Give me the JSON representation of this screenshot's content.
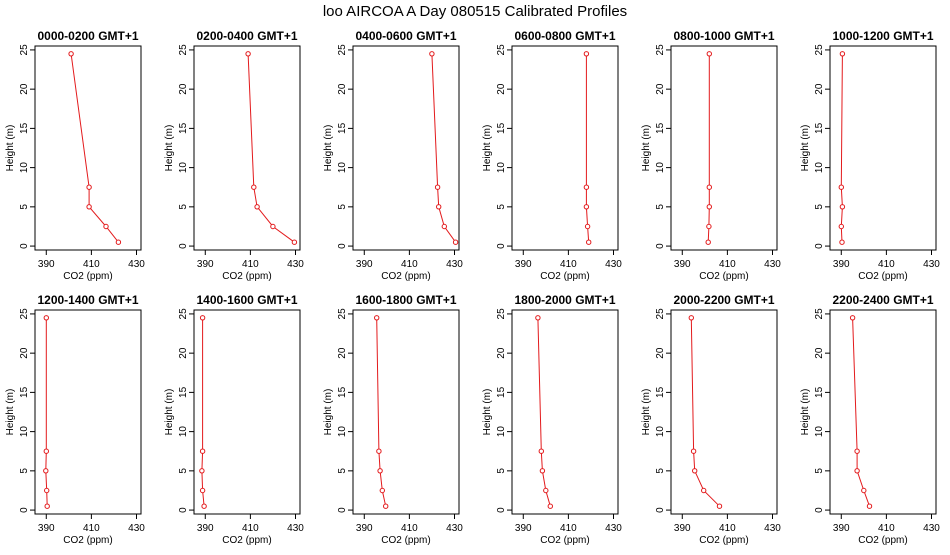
{
  "figure": {
    "title": "loo AIRCOA A  Day 080515  Calibrated Profiles",
    "series_color": "#e31a1c"
  },
  "chart_data": [
    {
      "type": "line",
      "title": "0000-0200 GMT+1",
      "xlabel": "CO2 (ppm)",
      "ylabel": "Height (m)",
      "xlim": [
        385,
        432
      ],
      "ylim": [
        -0.5,
        25.5
      ],
      "xticks": [
        390,
        410,
        430
      ],
      "yticks": [
        0,
        5,
        10,
        15,
        20,
        25
      ],
      "grid": false,
      "series": [
        {
          "x": [
            401,
            409,
            409,
            416.5,
            422
          ],
          "y": [
            24.5,
            7.5,
            5,
            2.5,
            0.5
          ]
        }
      ]
    },
    {
      "type": "line",
      "title": "0200-0400 GMT+1",
      "xlabel": "CO2 (ppm)",
      "ylabel": "Height (m)",
      "xlim": [
        385,
        432
      ],
      "ylim": [
        -0.5,
        25.5
      ],
      "xticks": [
        390,
        410,
        430
      ],
      "yticks": [
        0,
        5,
        10,
        15,
        20,
        25
      ],
      "grid": false,
      "series": [
        {
          "x": [
            409,
            411.5,
            413,
            420,
            429.5
          ],
          "y": [
            24.5,
            7.5,
            5,
            2.5,
            0.5
          ]
        }
      ]
    },
    {
      "type": "line",
      "title": "0400-0600 GMT+1",
      "xlabel": "CO2 (ppm)",
      "ylabel": "Height (m)",
      "xlim": [
        385,
        432
      ],
      "ylim": [
        -0.5,
        25.5
      ],
      "xticks": [
        390,
        410,
        430
      ],
      "yticks": [
        0,
        5,
        10,
        15,
        20,
        25
      ],
      "grid": false,
      "series": [
        {
          "x": [
            420,
            422.5,
            423,
            425.5,
            430.5
          ],
          "y": [
            24.5,
            7.5,
            5,
            2.5,
            0.5
          ]
        }
      ]
    },
    {
      "type": "line",
      "title": "0600-0800 GMT+1",
      "xlabel": "CO2 (ppm)",
      "ylabel": "Height (m)",
      "xlim": [
        385,
        432
      ],
      "ylim": [
        -0.5,
        25.5
      ],
      "xticks": [
        390,
        410,
        430
      ],
      "yticks": [
        0,
        5,
        10,
        15,
        20,
        25
      ],
      "grid": false,
      "series": [
        {
          "x": [
            418,
            418,
            418,
            418.5,
            419
          ],
          "y": [
            24.5,
            7.5,
            5,
            2.5,
            0.5
          ]
        }
      ]
    },
    {
      "type": "line",
      "title": "0800-1000 GMT+1",
      "xlabel": "CO2 (ppm)",
      "ylabel": "Height (m)",
      "xlim": [
        385,
        432
      ],
      "ylim": [
        -0.5,
        25.5
      ],
      "xticks": [
        390,
        410,
        430
      ],
      "yticks": [
        0,
        5,
        10,
        15,
        20,
        25
      ],
      "grid": false,
      "series": [
        {
          "x": [
            402,
            402,
            402,
            401.8,
            401.5
          ],
          "y": [
            24.5,
            7.5,
            5,
            2.5,
            0.5
          ]
        }
      ]
    },
    {
      "type": "line",
      "title": "1000-1200 GMT+1",
      "xlabel": "CO2 (ppm)",
      "ylabel": "Height (m)",
      "xlim": [
        385,
        432
      ],
      "ylim": [
        -0.5,
        25.5
      ],
      "xticks": [
        390,
        410,
        430
      ],
      "yticks": [
        0,
        5,
        10,
        15,
        20,
        25
      ],
      "grid": false,
      "series": [
        {
          "x": [
            390.5,
            390,
            390.5,
            390,
            390.3
          ],
          "y": [
            24.5,
            7.5,
            5,
            2.5,
            0.5
          ]
        }
      ]
    },
    {
      "type": "line",
      "title": "1200-1400 GMT+1",
      "xlabel": "CO2 (ppm)",
      "ylabel": "Height (m)",
      "xlim": [
        385,
        432
      ],
      "ylim": [
        -0.5,
        25.5
      ],
      "xticks": [
        390,
        410,
        430
      ],
      "yticks": [
        0,
        5,
        10,
        15,
        20,
        25
      ],
      "grid": false,
      "series": [
        {
          "x": [
            390,
            390,
            389.8,
            390.2,
            390.4
          ],
          "y": [
            24.5,
            7.5,
            5,
            2.5,
            0.5
          ]
        }
      ]
    },
    {
      "type": "line",
      "title": "1400-1600 GMT+1",
      "xlabel": "CO2 (ppm)",
      "ylabel": "Height (m)",
      "xlim": [
        385,
        432
      ],
      "ylim": [
        -0.5,
        25.5
      ],
      "xticks": [
        390,
        410,
        430
      ],
      "yticks": [
        0,
        5,
        10,
        15,
        20,
        25
      ],
      "grid": false,
      "series": [
        {
          "x": [
            388.8,
            388.8,
            388.5,
            388.8,
            389.5
          ],
          "y": [
            24.5,
            7.5,
            5,
            2.5,
            0.5
          ]
        }
      ]
    },
    {
      "type": "line",
      "title": "1600-1800 GMT+1",
      "xlabel": "CO2 (ppm)",
      "ylabel": "Height (m)",
      "xlim": [
        385,
        432
      ],
      "ylim": [
        -0.5,
        25.5
      ],
      "xticks": [
        390,
        410,
        430
      ],
      "yticks": [
        0,
        5,
        10,
        15,
        20,
        25
      ],
      "grid": false,
      "series": [
        {
          "x": [
            395.5,
            396.5,
            397,
            398,
            399.5
          ],
          "y": [
            24.5,
            7.5,
            5,
            2.5,
            0.5
          ]
        }
      ]
    },
    {
      "type": "line",
      "title": "1800-2000 GMT+1",
      "xlabel": "CO2 (ppm)",
      "ylabel": "Height (m)",
      "xlim": [
        385,
        432
      ],
      "ylim": [
        -0.5,
        25.5
      ],
      "xticks": [
        390,
        410,
        430
      ],
      "yticks": [
        0,
        5,
        10,
        15,
        20,
        25
      ],
      "grid": false,
      "series": [
        {
          "x": [
            396.5,
            398,
            398.5,
            400,
            402
          ],
          "y": [
            24.5,
            7.5,
            5,
            2.5,
            0.5
          ]
        }
      ]
    },
    {
      "type": "line",
      "title": "2000-2200 GMT+1",
      "xlabel": "CO2 (ppm)",
      "ylabel": "Height (m)",
      "xlim": [
        385,
        432
      ],
      "ylim": [
        -0.5,
        25.5
      ],
      "xticks": [
        390,
        410,
        430
      ],
      "yticks": [
        0,
        5,
        10,
        15,
        20,
        25
      ],
      "grid": false,
      "series": [
        {
          "x": [
            394,
            395,
            395.5,
            399.5,
            406.5
          ],
          "y": [
            24.5,
            7.5,
            5,
            2.5,
            0.5
          ]
        }
      ]
    },
    {
      "type": "line",
      "title": "2200-2400 GMT+1",
      "xlabel": "CO2 (ppm)",
      "ylabel": "Height (m)",
      "xlim": [
        385,
        432
      ],
      "ylim": [
        -0.5,
        25.5
      ],
      "xticks": [
        390,
        410,
        430
      ],
      "yticks": [
        0,
        5,
        10,
        15,
        20,
        25
      ],
      "grid": false,
      "series": [
        {
          "x": [
            395,
            397,
            397,
            400,
            402.5
          ],
          "y": [
            24.5,
            7.5,
            5,
            2.5,
            0.5
          ]
        }
      ]
    }
  ]
}
